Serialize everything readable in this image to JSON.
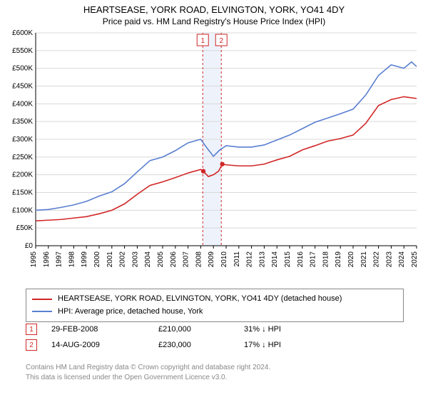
{
  "title": {
    "main": "HEARTSEASE, YORK ROAD, ELVINGTON, YORK, YO41 4DY",
    "sub": "Price paid vs. HM Land Registry's House Price Index (HPI)"
  },
  "chart": {
    "type": "line",
    "background_color": "#ffffff",
    "grid_color": "#d9d9d9",
    "axis_color": "#000000",
    "font_size_axis": 10,
    "x_domain_years": [
      1995,
      2025
    ],
    "x_ticks": [
      1995,
      1996,
      1997,
      1998,
      1999,
      2000,
      2001,
      2002,
      2003,
      2004,
      2005,
      2006,
      2007,
      2008,
      2009,
      2010,
      2011,
      2012,
      2013,
      2014,
      2015,
      2016,
      2017,
      2018,
      2019,
      2020,
      2021,
      2022,
      2023,
      2024,
      2025
    ],
    "y_domain_k": [
      0,
      600
    ],
    "y_ticks_k": [
      0,
      50,
      100,
      150,
      200,
      250,
      300,
      350,
      400,
      450,
      500,
      550,
      600
    ],
    "y_tick_labels": [
      "£0",
      "£50K",
      "£100K",
      "£150K",
      "£200K",
      "£250K",
      "£300K",
      "£350K",
      "£400K",
      "£450K",
      "£500K",
      "£550K",
      "£600K"
    ],
    "line_width": 1.6,
    "highlight_band": {
      "x_from_year": 2008.15,
      "x_to_year": 2009.6,
      "fill": "#eef2fb"
    },
    "markers": [
      {
        "id": "1",
        "year": 2008.16,
        "color": "#d12727"
      },
      {
        "id": "2",
        "year": 2009.62,
        "color": "#d12727"
      }
    ],
    "series": [
      {
        "name": "property",
        "color": "#d12727",
        "points_year_valuek": [
          [
            1995,
            70
          ],
          [
            1996,
            72
          ],
          [
            1997,
            74
          ],
          [
            1998,
            78
          ],
          [
            1999,
            82
          ],
          [
            2000,
            90
          ],
          [
            2001,
            100
          ],
          [
            2002,
            118
          ],
          [
            2003,
            145
          ],
          [
            2004,
            170
          ],
          [
            2005,
            180
          ],
          [
            2006,
            192
          ],
          [
            2007,
            205
          ],
          [
            2008,
            215
          ],
          [
            2008.2,
            210
          ],
          [
            2008.6,
            195
          ],
          [
            2009,
            200
          ],
          [
            2009.4,
            210
          ],
          [
            2009.7,
            230
          ],
          [
            2010,
            228
          ],
          [
            2011,
            225
          ],
          [
            2012,
            225
          ],
          [
            2013,
            230
          ],
          [
            2014,
            242
          ],
          [
            2015,
            252
          ],
          [
            2016,
            270
          ],
          [
            2017,
            282
          ],
          [
            2018,
            295
          ],
          [
            2019,
            302
          ],
          [
            2020,
            312
          ],
          [
            2021,
            345
          ],
          [
            2022,
            395
          ],
          [
            2023,
            412
          ],
          [
            2024,
            420
          ],
          [
            2025,
            415
          ]
        ]
      },
      {
        "name": "hpi",
        "color": "#5a7fd1",
        "points_year_valuek": [
          [
            1995,
            100
          ],
          [
            1996,
            102
          ],
          [
            1997,
            108
          ],
          [
            1998,
            115
          ],
          [
            1999,
            125
          ],
          [
            2000,
            140
          ],
          [
            2001,
            152
          ],
          [
            2002,
            175
          ],
          [
            2003,
            208
          ],
          [
            2004,
            240
          ],
          [
            2005,
            250
          ],
          [
            2006,
            268
          ],
          [
            2007,
            290
          ],
          [
            2008,
            300
          ],
          [
            2008.5,
            275
          ],
          [
            2009,
            252
          ],
          [
            2009.5,
            270
          ],
          [
            2010,
            282
          ],
          [
            2011,
            278
          ],
          [
            2012,
            278
          ],
          [
            2013,
            284
          ],
          [
            2014,
            298
          ],
          [
            2015,
            312
          ],
          [
            2016,
            330
          ],
          [
            2017,
            348
          ],
          [
            2018,
            360
          ],
          [
            2019,
            372
          ],
          [
            2020,
            385
          ],
          [
            2021,
            425
          ],
          [
            2022,
            480
          ],
          [
            2023,
            510
          ],
          [
            2024,
            500
          ],
          [
            2024.6,
            518
          ],
          [
            2025,
            505
          ]
        ]
      }
    ]
  },
  "legend": {
    "rows": [
      {
        "color": "#d12727",
        "label": "HEARTSEASE, YORK ROAD, ELVINGTON, YORK, YO41 4DY (detached house)"
      },
      {
        "color": "#5a7fd1",
        "label": "HPI: Average price, detached house, York"
      }
    ]
  },
  "marker_table": {
    "rows": [
      {
        "badge": "1",
        "color": "#d12727",
        "date": "29-FEB-2008",
        "price": "£210,000",
        "delta": "31% ↓ HPI"
      },
      {
        "badge": "2",
        "color": "#d12727",
        "date": "14-AUG-2009",
        "price": "£230,000",
        "delta": "17% ↓ HPI"
      }
    ]
  },
  "footer": {
    "line1": "Contains HM Land Registry data © Crown copyright and database right 2024.",
    "line2": "This data is licensed under the Open Government Licence v3.0."
  }
}
